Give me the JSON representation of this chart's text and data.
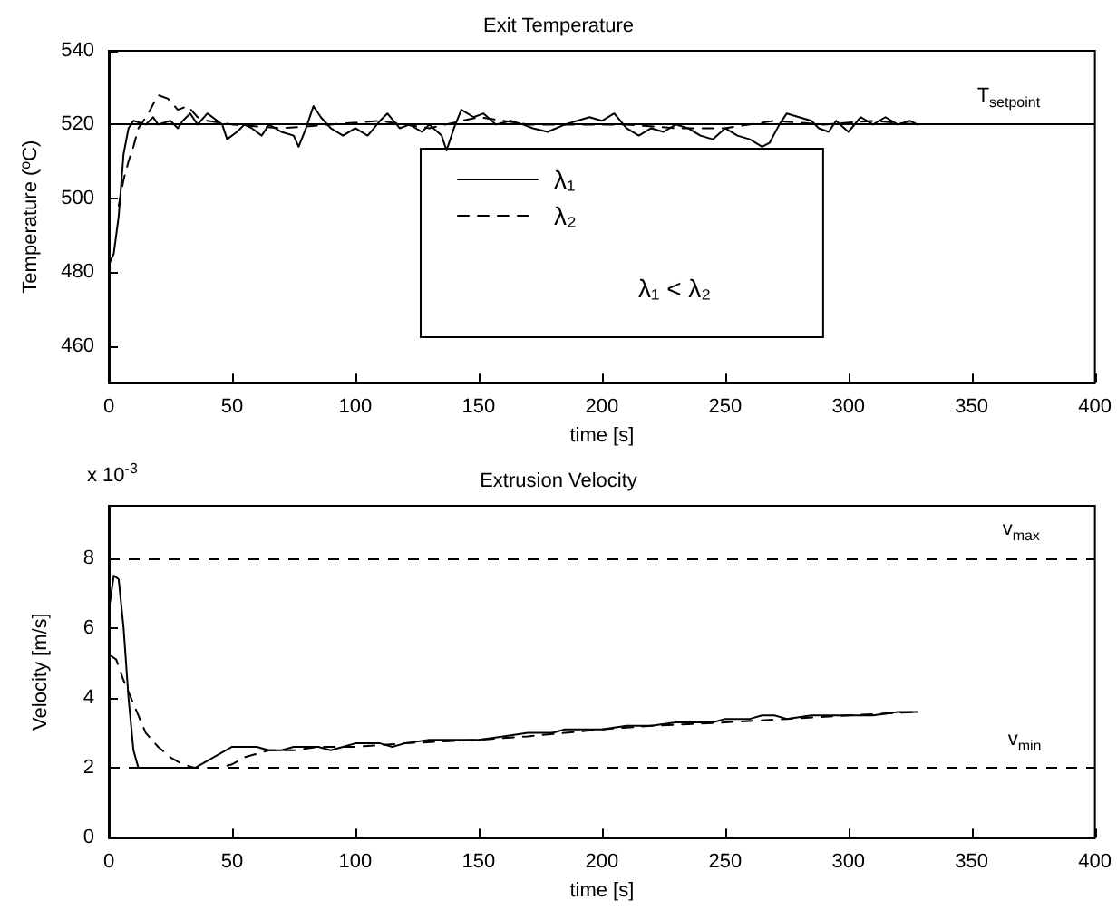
{
  "chart_data": [
    {
      "type": "line",
      "title": "Exit Temperature",
      "xlabel": "time [s]",
      "ylabel": "Temperature ($^{o}$C)",
      "xlim": [
        0,
        400
      ],
      "xticks": [
        0,
        50,
        100,
        150,
        200,
        250,
        300,
        350,
        400
      ],
      "ylim": [
        450,
        540
      ],
      "yticks": [
        460,
        480,
        500,
        520,
        540
      ],
      "grid": false,
      "legend": "center",
      "marker": "none",
      "annotations": [
        "λ₁ < λ₂"
      ],
      "ref_lines": [
        {
          "axis": "y",
          "value": 520,
          "label": "T$_{setpoint}$",
          "color": "#000000",
          "line_style": "solid"
        }
      ],
      "series": [
        {
          "name": "λ₁",
          "color": "#000000",
          "line_style": "solid",
          "x": [
            0,
            2,
            4,
            6,
            8,
            10,
            15,
            18,
            20,
            25,
            28,
            30,
            33,
            36,
            40,
            44,
            46,
            48,
            52,
            55,
            58,
            62,
            65,
            70,
            75,
            77,
            80,
            83,
            86,
            90,
            95,
            100,
            105,
            110,
            113,
            118,
            122,
            127,
            130,
            135,
            137,
            140,
            143,
            148,
            152,
            157,
            163,
            168,
            172,
            178,
            185,
            190,
            195,
            200,
            205,
            210,
            215,
            220,
            225,
            230,
            235,
            240,
            245,
            250,
            255,
            260,
            265,
            268,
            272,
            275,
            280,
            285,
            288,
            292,
            295,
            300,
            305,
            310,
            315,
            320,
            325,
            328
          ],
          "values": [
            482,
            485,
            495,
            512,
            519,
            521,
            520,
            522,
            520,
            521,
            519,
            521,
            523,
            520,
            523,
            521,
            520,
            516,
            518,
            520,
            519,
            517,
            520,
            518,
            517,
            514,
            519,
            525,
            522,
            519,
            517,
            519,
            517,
            521,
            523,
            519,
            520,
            518,
            520,
            517,
            513,
            519,
            524,
            522,
            523,
            520,
            521,
            520,
            519,
            518,
            520,
            521,
            522,
            521,
            523,
            519,
            517,
            519,
            518,
            520,
            519,
            517,
            516,
            519,
            517,
            516,
            514,
            515,
            520,
            523,
            522,
            521,
            519,
            518,
            521,
            518,
            522,
            520,
            522,
            520,
            521,
            520
          ]
        },
        {
          "name": "λ₂",
          "color": "#000000",
          "line_style": "dashed",
          "x": [
            4,
            6,
            8,
            10,
            12,
            16,
            20,
            24,
            28,
            32,
            36,
            40,
            50,
            70,
            90,
            110,
            130,
            150,
            170,
            190,
            210,
            230,
            250,
            270,
            290,
            310,
            328
          ],
          "values": [
            498,
            505,
            510,
            514,
            519,
            523,
            528,
            527,
            524,
            525,
            522,
            521,
            520,
            519,
            520,
            521,
            519,
            522,
            520,
            520,
            520,
            519,
            519,
            521,
            520,
            521,
            520
          ]
        }
      ]
    },
    {
      "type": "line",
      "title": "Extrusion Velocity",
      "xlabel": "time [s]",
      "ylabel": "Velocity [m/s]",
      "xlim": [
        0,
        400
      ],
      "xticks": [
        0,
        50,
        100,
        150,
        200,
        250,
        300,
        350,
        400
      ],
      "ylim": [
        0,
        9.5
      ],
      "yticks": [
        0,
        2,
        4,
        6,
        8
      ],
      "grid": false,
      "marker": "none",
      "annotations": [
        "x 10$^{-3}$"
      ],
      "ref_lines": [
        {
          "axis": "y",
          "value": 8,
          "label": "v$_{max}$",
          "color": "#000000",
          "line_style": "dashed"
        },
        {
          "axis": "y",
          "value": 2,
          "label": "v$_{min}$",
          "color": "#000000",
          "line_style": "dashed"
        }
      ],
      "series": [
        {
          "color": "#000000",
          "line_style": "solid",
          "x": [
            0,
            2,
            4,
            6,
            8,
            10,
            12,
            35,
            40,
            45,
            50,
            60,
            65,
            70,
            75,
            85,
            90,
            95,
            100,
            110,
            115,
            120,
            130,
            150,
            160,
            170,
            180,
            185,
            200,
            210,
            220,
            230,
            245,
            250,
            260,
            265,
            270,
            275,
            285,
            300,
            310,
            320,
            328
          ],
          "values": [
            6.5,
            7.5,
            7.4,
            6,
            4,
            2.5,
            2,
            2,
            2.2,
            2.4,
            2.6,
            2.6,
            2.5,
            2.5,
            2.6,
            2.6,
            2.5,
            2.6,
            2.7,
            2.7,
            2.6,
            2.7,
            2.8,
            2.8,
            2.9,
            3,
            3,
            3.1,
            3.1,
            3.2,
            3.2,
            3.3,
            3.3,
            3.4,
            3.4,
            3.5,
            3.5,
            3.4,
            3.5,
            3.5,
            3.5,
            3.6,
            3.6
          ]
        },
        {
          "color": "#000000",
          "line_style": "dashed",
          "x": [
            1,
            3,
            6,
            9,
            15,
            20,
            25,
            30,
            35,
            45,
            50,
            55,
            60,
            65,
            75,
            85,
            100,
            120,
            150,
            170,
            200,
            220,
            250,
            275,
            300,
            328
          ],
          "values": [
            5.2,
            5.1,
            4.5,
            4,
            3,
            2.6,
            2.3,
            2.1,
            2,
            2,
            2.1,
            2.3,
            2.4,
            2.5,
            2.5,
            2.6,
            2.6,
            2.7,
            2.8,
            2.9,
            3.1,
            3.2,
            3.3,
            3.4,
            3.5,
            3.6
          ]
        }
      ]
    }
  ]
}
